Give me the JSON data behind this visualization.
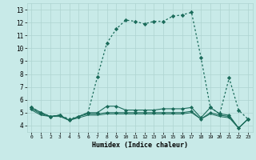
{
  "xlabel": "Humidex (Indice chaleur)",
  "xlim": [
    -0.5,
    23.5
  ],
  "ylim": [
    3.5,
    13.5
  ],
  "yticks": [
    4,
    5,
    6,
    7,
    8,
    9,
    10,
    11,
    12,
    13
  ],
  "xticks": [
    0,
    1,
    2,
    3,
    4,
    5,
    6,
    7,
    8,
    9,
    10,
    11,
    12,
    13,
    14,
    15,
    16,
    17,
    18,
    19,
    20,
    21,
    22,
    23
  ],
  "bg_color": "#c8eae8",
  "grid_color": "#aed4d0",
  "line_color": "#1a6b5a",
  "line1_x": [
    0,
    1,
    2,
    3,
    4,
    5,
    6,
    7,
    8,
    9,
    10,
    11,
    12,
    13,
    14,
    15,
    16,
    17,
    18,
    19,
    20,
    21,
    22,
    23
  ],
  "line1_y": [
    5.4,
    5.0,
    4.7,
    4.8,
    4.5,
    4.7,
    5.0,
    7.8,
    10.4,
    11.5,
    12.2,
    12.1,
    11.9,
    12.1,
    12.1,
    12.5,
    12.6,
    12.8,
    9.3,
    5.4,
    4.9,
    7.7,
    5.2,
    4.5
  ],
  "line2_x": [
    0,
    1,
    2,
    3,
    4,
    5,
    6,
    7,
    8,
    9,
    10,
    11,
    12,
    13,
    14,
    15,
    16,
    17,
    18,
    19,
    20,
    21,
    22,
    23
  ],
  "line2_y": [
    5.4,
    5.0,
    4.7,
    4.8,
    4.4,
    4.7,
    5.0,
    5.0,
    5.5,
    5.5,
    5.2,
    5.2,
    5.2,
    5.2,
    5.3,
    5.3,
    5.3,
    5.4,
    4.6,
    5.4,
    4.9,
    4.8,
    3.8,
    4.5
  ],
  "line3_x": [
    0,
    1,
    2,
    3,
    4,
    5,
    6,
    7,
    8,
    9,
    10,
    11,
    12,
    13,
    14,
    15,
    16,
    17,
    18,
    19,
    20,
    21,
    22,
    23
  ],
  "line3_y": [
    5.3,
    4.9,
    4.7,
    4.8,
    4.4,
    4.7,
    4.9,
    4.9,
    5.0,
    5.0,
    5.0,
    5.0,
    5.0,
    5.0,
    5.0,
    5.0,
    5.0,
    5.1,
    4.5,
    5.0,
    4.8,
    4.7,
    3.8,
    4.5
  ],
  "line4_x": [
    0,
    1,
    2,
    3,
    4,
    5,
    6,
    7,
    8,
    9,
    10,
    11,
    12,
    13,
    14,
    15,
    16,
    17,
    18,
    19,
    20,
    21,
    22,
    23
  ],
  "line4_y": [
    5.2,
    4.8,
    4.7,
    4.7,
    4.4,
    4.6,
    4.8,
    4.8,
    4.9,
    4.9,
    4.9,
    4.9,
    4.9,
    4.9,
    4.9,
    4.9,
    4.9,
    5.0,
    4.5,
    4.9,
    4.7,
    4.6,
    3.8,
    4.5
  ]
}
